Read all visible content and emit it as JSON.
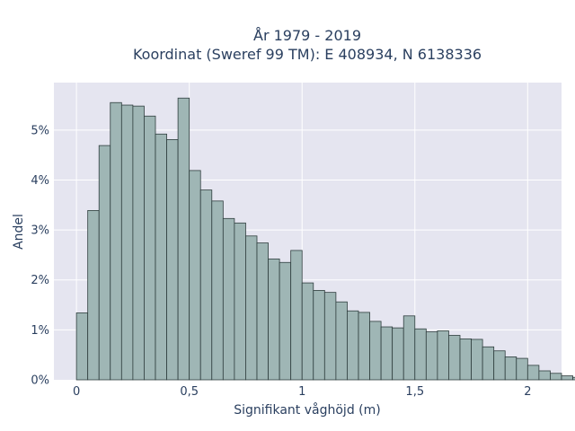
{
  "chart_data": {
    "type": "bar",
    "title_line1": "År 1979 - 2019",
    "title_line2": "Koordinat (Sweref 99 TM): E 408934, N 6138336",
    "xlabel": "Signifikant våghöjd (m)",
    "ylabel": "Andel",
    "xlim": [
      -0.1,
      2.15
    ],
    "ylim": [
      0,
      0.0595
    ],
    "x_ticks": [
      0,
      0.5,
      1,
      1.5,
      2
    ],
    "x_tick_labels": [
      "0",
      "0,5",
      "1",
      "1,5",
      "2"
    ],
    "y_ticks": [
      0,
      0.01,
      0.02,
      0.03,
      0.04,
      0.05
    ],
    "y_tick_labels": [
      "0%",
      "1%",
      "2%",
      "3%",
      "4%",
      "5%"
    ],
    "bin_start": 0,
    "bin_width": 0.05,
    "values": [
      0.0134,
      0.0339,
      0.0469,
      0.0555,
      0.055,
      0.0548,
      0.0528,
      0.0492,
      0.0481,
      0.0564,
      0.0419,
      0.038,
      0.0358,
      0.0323,
      0.0314,
      0.0288,
      0.0274,
      0.0242,
      0.0235,
      0.0259,
      0.0194,
      0.0179,
      0.0175,
      0.0156,
      0.0138,
      0.0135,
      0.0117,
      0.0106,
      0.0104,
      0.0128,
      0.0102,
      0.0096,
      0.0098,
      0.0089,
      0.0082,
      0.0081,
      0.0066,
      0.0058,
      0.0046,
      0.0043,
      0.0029,
      0.0018,
      0.0013,
      0.0008,
      0.0005,
      0.0003,
      0.0002,
      0.0001,
      0.0001,
      0.0001,
      0.0001
    ],
    "grid": true,
    "colors": {
      "plot_bg": "#e5e5f0",
      "grid": "#ffffff",
      "bar_fill": "#9fb6b5",
      "bar_stroke": "#2f3e3e"
    }
  }
}
